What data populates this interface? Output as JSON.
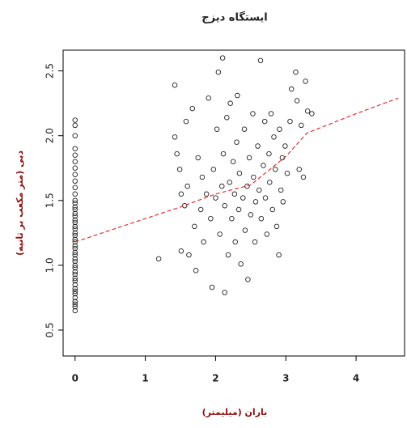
{
  "chart_data": {
    "type": "scatter",
    "title": "ایستگاه دیزج",
    "xlabel": "باران (میلیمتر)",
    "ylabel": "دبی (متر مکعب بر ثانیه)",
    "x": [
      0,
      0,
      0,
      0,
      0,
      0,
      0,
      0,
      0,
      0,
      0,
      0,
      0,
      0,
      0,
      0,
      0,
      0,
      0,
      0,
      0,
      0,
      0,
      0,
      0,
      0,
      0,
      0,
      0,
      0,
      0,
      0,
      0,
      0,
      0,
      0,
      0,
      0,
      0,
      0,
      0,
      0,
      0,
      0,
      0,
      0,
      1.19,
      1.42,
      1.42,
      1.45,
      1.49,
      1.51,
      1.51,
      1.56,
      1.58,
      1.6,
      1.62,
      1.67,
      1.7,
      1.72,
      1.75,
      1.79,
      1.81,
      1.83,
      1.87,
      1.9,
      1.93,
      1.95,
      1.97,
      2.0,
      2.02,
      2.04,
      2.06,
      2.09,
      2.1,
      2.11,
      2.13,
      2.13,
      2.16,
      2.18,
      2.2,
      2.21,
      2.23,
      2.25,
      2.27,
      2.28,
      2.3,
      2.31,
      2.33,
      2.34,
      2.36,
      2.39,
      2.41,
      2.42,
      2.45,
      2.46,
      2.48,
      2.5,
      2.53,
      2.54,
      2.56,
      2.57,
      2.6,
      2.62,
      2.64,
      2.65,
      2.68,
      2.7,
      2.71,
      2.73,
      2.76,
      2.77,
      2.79,
      2.81,
      2.83,
      2.85,
      2.87,
      2.9,
      2.91,
      2.93,
      2.95,
      2.96,
      2.99,
      3.02,
      3.06,
      3.08,
      3.14,
      3.16,
      3.19,
      3.22,
      3.25,
      3.28,
      3.31,
      3.37
    ],
    "values": [
      0.65,
      0.68,
      0.7,
      0.72,
      0.75,
      0.78,
      0.8,
      0.82,
      0.85,
      0.88,
      0.9,
      0.93,
      0.95,
      0.98,
      1.0,
      1.03,
      1.05,
      1.08,
      1.1,
      1.13,
      1.15,
      1.18,
      1.2,
      1.23,
      1.25,
      1.28,
      1.3,
      1.33,
      1.35,
      1.38,
      1.4,
      1.43,
      1.45,
      1.48,
      1.5,
      1.55,
      1.6,
      1.65,
      1.7,
      1.75,
      1.8,
      1.85,
      1.9,
      2.0,
      2.08,
      2.12,
      1.05,
      2.39,
      1.99,
      1.86,
      1.74,
      1.55,
      1.11,
      1.46,
      2.11,
      1.61,
      1.08,
      2.21,
      1.3,
      0.96,
      1.83,
      1.43,
      1.68,
      1.18,
      1.55,
      2.29,
      1.36,
      0.83,
      1.74,
      1.52,
      2.05,
      2.49,
      1.24,
      1.61,
      2.6,
      1.86,
      1.46,
      0.79,
      2.14,
      1.08,
      1.64,
      2.25,
      1.36,
      1.8,
      1.55,
      1.18,
      1.95,
      2.31,
      1.43,
      1.71,
      1.01,
      1.52,
      2.05,
      1.27,
      1.61,
      0.89,
      1.83,
      1.39,
      2.17,
      1.68,
      1.18,
      1.49,
      1.92,
      1.58,
      2.58,
      1.36,
      1.77,
      2.11,
      1.52,
      1.24,
      1.86,
      1.64,
      2.17,
      1.43,
      1.99,
      1.74,
      1.3,
      1.08,
      2.05,
      1.58,
      1.83,
      1.49,
      1.92,
      1.71,
      2.11,
      2.36,
      2.49,
      2.27,
      1.74,
      2.08,
      1.68,
      2.42,
      2.19,
      2.17
    ],
    "color": "#222222",
    "line": {
      "x": [
        0,
        0.5,
        1,
        1.5,
        2,
        2.5,
        3,
        3.3,
        4,
        4.6
      ],
      "values": [
        1.18,
        1.27,
        1.36,
        1.45,
        1.55,
        1.62,
        1.84,
        2.02,
        2.17,
        2.29
      ],
      "color": "#e03030"
    },
    "xlim": [
      -0.17,
      4.69
    ],
    "ylim": [
      0.3,
      2.66
    ],
    "xticks": [
      0,
      1,
      2,
      3,
      4
    ],
    "yticks": [
      0.5,
      {
        "value": 1,
        "label": "1.0"
      },
      1.5,
      {
        "value": 2,
        "label": "2.0"
      },
      2.5
    ]
  }
}
